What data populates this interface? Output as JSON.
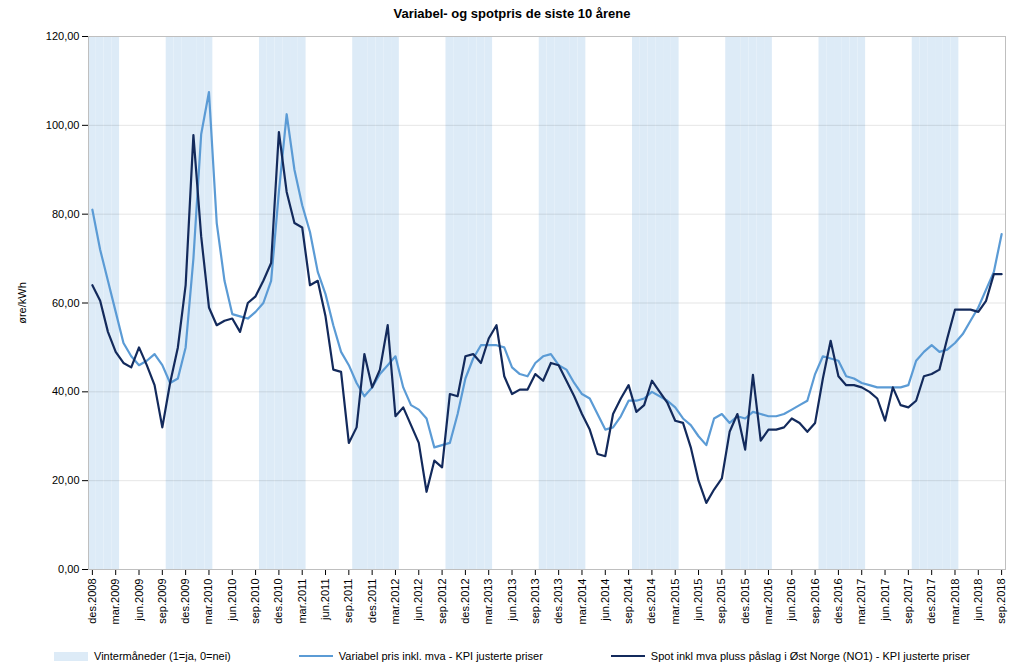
{
  "chart_data": {
    "type": "line",
    "title": "Variabel- og spotpris de siste 10 årene",
    "ylabel": "øre/kWh",
    "categories": [
      "des.2008",
      null,
      null,
      "mar.2009",
      null,
      null,
      "jun.2009",
      null,
      null,
      "sep.2009",
      null,
      null,
      "des.2009",
      null,
      null,
      "mar.2010",
      null,
      null,
      "jun.2010",
      null,
      null,
      "sep.2010",
      null,
      null,
      "des.2010",
      null,
      null,
      "mar.2011",
      null,
      null,
      "jun.2011",
      null,
      null,
      "sep.2011",
      null,
      null,
      "des.2011",
      null,
      null,
      "mar.2012",
      null,
      null,
      "jun.2012",
      null,
      null,
      "sep.2012",
      null,
      null,
      "des.2012",
      null,
      null,
      "mar.2013",
      null,
      null,
      "jun.2013",
      null,
      null,
      "sep.2013",
      null,
      null,
      "des.2013",
      null,
      null,
      "mar.2014",
      null,
      null,
      "jun.2014",
      null,
      null,
      "sep.2014",
      null,
      null,
      "des.2014",
      null,
      null,
      "mar.2015",
      null,
      null,
      "jun.2015",
      null,
      null,
      "sep.2015",
      null,
      null,
      "des.2015",
      null,
      null,
      "mar.2016",
      null,
      null,
      "jun.2016",
      null,
      null,
      "sep.2016",
      null,
      null,
      "des.2016",
      null,
      null,
      "mar.2017",
      null,
      null,
      "jun.2017",
      null,
      null,
      "sep.2017",
      null,
      null,
      "des.2017",
      null,
      null,
      "mar.2018",
      null,
      null,
      "jun.2018",
      null,
      null,
      "sep.2018"
    ],
    "series": [
      {
        "name": "Vintermåneder (1=ja, 0=nei)",
        "type": "bar",
        "axis": "y2",
        "color": "#ddebf7",
        "values": [
          1,
          1,
          1,
          1,
          0,
          0,
          0,
          0,
          0,
          0,
          1,
          1,
          1,
          1,
          1,
          1,
          0,
          0,
          0,
          0,
          0,
          0,
          1,
          1,
          1,
          1,
          1,
          1,
          0,
          0,
          0,
          0,
          0,
          0,
          1,
          1,
          1,
          1,
          1,
          1,
          0,
          0,
          0,
          0,
          0,
          0,
          1,
          1,
          1,
          1,
          1,
          1,
          0,
          0,
          0,
          0,
          0,
          0,
          1,
          1,
          1,
          1,
          1,
          1,
          0,
          0,
          0,
          0,
          0,
          0,
          1,
          1,
          1,
          1,
          1,
          1,
          0,
          0,
          0,
          0,
          0,
          0,
          1,
          1,
          1,
          1,
          1,
          1,
          0,
          0,
          0,
          0,
          0,
          0,
          1,
          1,
          1,
          1,
          1,
          1,
          0,
          0,
          0,
          0,
          0,
          0,
          1,
          1,
          1,
          1,
          1,
          1,
          0,
          0,
          0,
          0,
          0,
          0
        ]
      },
      {
        "name": "Variabel pris inkl. mva - KPI justerte priser",
        "type": "line",
        "color": "#5b9bd5",
        "values": [
          81,
          72,
          65,
          58,
          51,
          48,
          46,
          47,
          48.5,
          46,
          42,
          43,
          50,
          70,
          98,
          107.5,
          78,
          65,
          57.5,
          57,
          56.5,
          58,
          60,
          65,
          85,
          102.5,
          90,
          82,
          76,
          67,
          62,
          55,
          49,
          46,
          42,
          39,
          41,
          44,
          46,
          48,
          41,
          37,
          36,
          34,
          27.5,
          28,
          28.5,
          35,
          43,
          47.5,
          50.5,
          50.5,
          50.5,
          50,
          45.5,
          44,
          43.5,
          46.5,
          48,
          48.5,
          46,
          45,
          42,
          39.5,
          38.5,
          35,
          31.5,
          32,
          34.5,
          38,
          38,
          38.5,
          40,
          39,
          38,
          36.5,
          34,
          32.5,
          30,
          28,
          34,
          35,
          33,
          34.5,
          34,
          35.5,
          35,
          34.5,
          34.5,
          35,
          36,
          37,
          38,
          44,
          48,
          47.5,
          47,
          43.5,
          43,
          42,
          41.5,
          41,
          41,
          41,
          41,
          41.5,
          47,
          49,
          50.5,
          49,
          49.5,
          51,
          53,
          56,
          59,
          63,
          67,
          75.5
        ]
      },
      {
        "name": "Spot inkl mva pluss påslag i Øst Norge (NO1) - KPI justerte priser",
        "type": "line",
        "color": "#132a5c",
        "values": [
          64,
          60.5,
          53.5,
          49,
          46.5,
          45.5,
          50,
          46,
          41.5,
          32,
          42,
          50,
          64,
          97.8,
          75,
          59,
          55,
          56,
          56.5,
          53.5,
          60,
          61.5,
          65,
          69,
          98.5,
          85,
          78,
          77,
          64,
          65,
          57,
          45,
          44.5,
          28.5,
          32,
          48.5,
          41,
          45,
          55,
          34.5,
          36.5,
          32.5,
          28.5,
          17.5,
          24.5,
          23,
          39.5,
          39,
          48,
          48.5,
          46.5,
          52,
          55,
          43.5,
          39.5,
          40.5,
          40.5,
          44,
          42.5,
          46.5,
          46,
          42.5,
          39,
          35,
          31.5,
          26,
          25.5,
          35,
          38.5,
          41.5,
          35.5,
          37,
          42.5,
          40,
          37.5,
          33.5,
          33,
          27.5,
          20,
          15,
          18,
          20.5,
          31,
          35,
          27,
          43.8,
          29,
          31.5,
          31.5,
          32,
          34,
          33,
          31,
          33,
          43,
          51.5,
          43.5,
          41.5,
          41.5,
          41,
          40,
          38.5,
          33.5,
          41,
          37,
          36.5,
          38,
          43.5,
          44,
          45,
          52,
          58.5,
          58.5,
          58.5,
          58,
          60.5,
          66.5,
          66.5
        ]
      }
    ],
    "ylim": [
      0,
      120
    ],
    "yticks": [
      {
        "value": 0,
        "label": "0,00"
      },
      {
        "value": 20,
        "label": "20,00"
      },
      {
        "value": 40,
        "label": "40,00"
      },
      {
        "value": 60,
        "label": "60,00"
      },
      {
        "value": 80,
        "label": "80,00"
      },
      {
        "value": 100,
        "label": "100,00"
      },
      {
        "value": 120,
        "label": "120,00"
      }
    ],
    "y2lim": [
      0,
      1
    ],
    "y2ticks": [],
    "grid": true,
    "legend": "bottom"
  }
}
